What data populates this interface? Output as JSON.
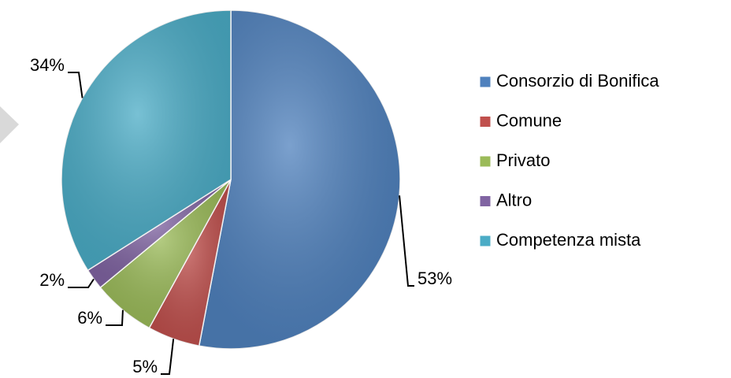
{
  "chart_data": {
    "type": "pie",
    "categories": [
      "Consorzio di Bonifica",
      "Comune",
      "Privato",
      "Altro",
      "Competenza mista"
    ],
    "values": [
      53,
      5,
      6,
      2,
      34
    ],
    "value_labels": [
      "53%",
      "5%",
      "6%",
      "2%",
      "34%"
    ],
    "colors": [
      "#4f81bd",
      "#c0504d",
      "#9bbb59",
      "#8064a2",
      "#4bacc6"
    ],
    "legend": "right"
  }
}
